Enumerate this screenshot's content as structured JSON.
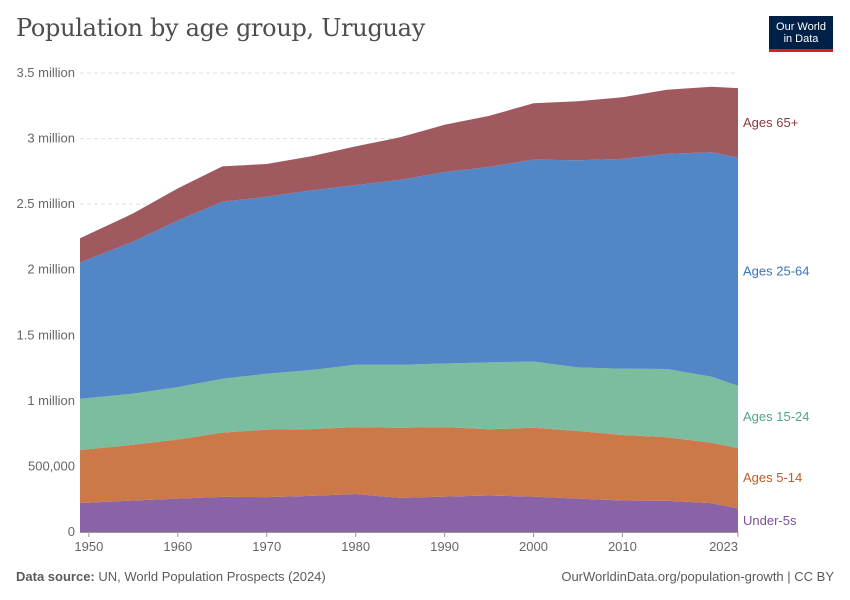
{
  "title": "Population by age group, Uruguay",
  "logo": {
    "line1": "Our World",
    "line2": "in Data"
  },
  "footer": {
    "source_label": "Data source:",
    "source_text": "UN, World Population Prospects (2024)",
    "url": "OurWorldinData.org/population-growth | CC BY"
  },
  "colors": {
    "under5": "#8a63a7",
    "age5_14": "#cc7848",
    "age15_24": "#7bbd9e",
    "age25_64": "#5286c7",
    "age65": "#a0595f",
    "label_under5": "#7c4f9f",
    "label_5_14": "#c05d21",
    "label_15_24": "#4ea888",
    "label_25_64": "#3b73b9",
    "label_65": "#8c3840"
  },
  "chart_data": {
    "type": "area",
    "stacked": true,
    "title": "Population by age group, Uruguay",
    "x_ticks": [
      1950,
      1960,
      1970,
      1980,
      1990,
      2000,
      2010,
      2023
    ],
    "y_ticks": [
      {
        "value": 0,
        "label": "0"
      },
      {
        "value": 500000,
        "label": "500,000"
      },
      {
        "value": 1000000,
        "label": "1 million"
      },
      {
        "value": 1500000,
        "label": "1.5 million"
      },
      {
        "value": 2000000,
        "label": "2 million"
      },
      {
        "value": 2500000,
        "label": "2.5 million"
      },
      {
        "value": 3000000,
        "label": "3 million"
      },
      {
        "value": 3500000,
        "label": "3.5 million"
      }
    ],
    "xlim": [
      1949,
      2023
    ],
    "ylim": [
      0,
      3500000
    ],
    "x": [
      1949,
      1955,
      1960,
      1965,
      1970,
      1975,
      1980,
      1985,
      1990,
      1995,
      2000,
      2005,
      2010,
      2015,
      2020,
      2023
    ],
    "series": [
      {
        "name": "Under-5s",
        "color_key": "under5",
        "label_key": "label_under5",
        "values": [
          220000,
          240000,
          255000,
          268000,
          266000,
          275000,
          290000,
          260000,
          270000,
          278000,
          270000,
          255000,
          240000,
          238000,
          220000,
          180000
        ]
      },
      {
        "name": "Ages 5-14",
        "color_key": "age5_14",
        "label_key": "label_5_14",
        "values": [
          405000,
          425000,
          450000,
          490000,
          515000,
          510000,
          510000,
          535000,
          530000,
          505000,
          525000,
          515000,
          500000,
          485000,
          460000,
          460000
        ]
      },
      {
        "name": "Ages 15-24",
        "color_key": "age15_24",
        "label_key": "label_15_24",
        "values": [
          390000,
          390000,
          400000,
          410000,
          425000,
          450000,
          475000,
          480000,
          485000,
          510000,
          505000,
          485000,
          505000,
          520000,
          505000,
          475000
        ]
      },
      {
        "name": "Ages 25-64",
        "color_key": "age25_64",
        "label_key": "label_25_64",
        "values": [
          1040000,
          1160000,
          1270000,
          1350000,
          1350000,
          1370000,
          1370000,
          1410000,
          1460000,
          1490000,
          1540000,
          1580000,
          1600000,
          1640000,
          1710000,
          1740000
        ]
      },
      {
        "name": "Ages 65+",
        "color_key": "age65",
        "label_key": "label_65",
        "values": [
          185000,
          215000,
          245000,
          270000,
          250000,
          260000,
          295000,
          325000,
          360000,
          390000,
          430000,
          450000,
          470000,
          490000,
          500000,
          530000
        ]
      }
    ]
  }
}
